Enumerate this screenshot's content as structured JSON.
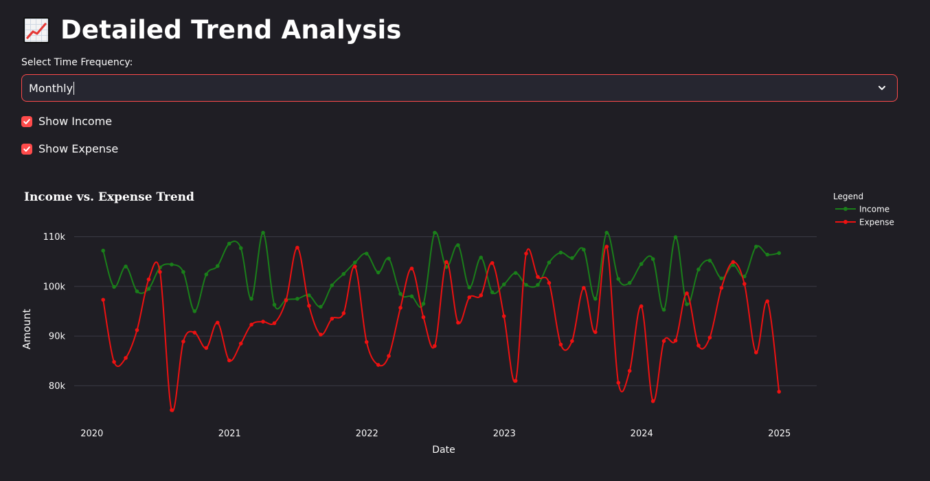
{
  "page": {
    "title": "Detailed Trend Analysis",
    "title_icon": "chart-increasing-icon"
  },
  "frequency": {
    "label": "Select Time Frequency:",
    "selected": "Monthly"
  },
  "toggles": {
    "income": {
      "label": "Show Income",
      "checked": true
    },
    "expense": {
      "label": "Show Expense",
      "checked": true
    }
  },
  "colors": {
    "accent": "#ff4b4b",
    "income": "#1a7f1a",
    "expense": "#ee1111",
    "background": "#1f1e24"
  },
  "chart_data": {
    "type": "line",
    "title": "Income vs. Expense Trend",
    "xlabel": "Date",
    "ylabel": "Amount",
    "x_ticks": [
      "2020",
      "2021",
      "2022",
      "2023",
      "2024",
      "2025"
    ],
    "y_ticks": [
      "80k",
      "90k",
      "100k",
      "110k"
    ],
    "ylim": [
      73000,
      112000
    ],
    "xlim": [
      "2019-11-15",
      "2025-04-10"
    ],
    "legend_title": "Legend",
    "legend_position": "top-right",
    "grid": true,
    "x": [
      "2020-01-31",
      "2020-02-29",
      "2020-03-31",
      "2020-04-30",
      "2020-05-31",
      "2020-06-30",
      "2020-07-31",
      "2020-08-31",
      "2020-09-30",
      "2020-10-31",
      "2020-11-30",
      "2020-12-31",
      "2021-01-31",
      "2021-02-28",
      "2021-03-31",
      "2021-04-30",
      "2021-05-31",
      "2021-06-30",
      "2021-07-31",
      "2021-08-31",
      "2021-09-30",
      "2021-10-31",
      "2021-11-30",
      "2021-12-31",
      "2022-01-31",
      "2022-02-28",
      "2022-03-31",
      "2022-04-30",
      "2022-05-31",
      "2022-06-30",
      "2022-07-31",
      "2022-08-31",
      "2022-09-30",
      "2022-10-31",
      "2022-11-30",
      "2022-12-31",
      "2023-01-31",
      "2023-02-28",
      "2023-03-31",
      "2023-04-30",
      "2023-05-31",
      "2023-06-30",
      "2023-07-31",
      "2023-08-31",
      "2023-09-30",
      "2023-10-31",
      "2023-11-30",
      "2023-12-31",
      "2024-01-31",
      "2024-02-29",
      "2024-03-31",
      "2024-04-30",
      "2024-05-31",
      "2024-06-30",
      "2024-07-31",
      "2024-08-31",
      "2024-09-30",
      "2024-10-31",
      "2024-11-30",
      "2024-12-31"
    ],
    "series": [
      {
        "name": "Income",
        "color": "#1a7f1a",
        "values": [
          107200,
          99900,
          104000,
          99000,
          99500,
          103800,
          104400,
          102900,
          95000,
          102400,
          104100,
          108600,
          107700,
          97500,
          110800,
          96300,
          97300,
          97500,
          98200,
          95900,
          100200,
          102500,
          104800,
          106600,
          102800,
          105600,
          98500,
          98000,
          96500,
          110800,
          103900,
          108300,
          99800,
          105800,
          98800,
          100400,
          102700,
          100300,
          100300,
          104800,
          106800,
          105700,
          107400,
          97500,
          110800,
          101500,
          100700,
          104500,
          105500,
          95300,
          109900,
          96400,
          103400,
          105200,
          101600,
          104300,
          102000,
          108000,
          106400,
          106700
        ]
      },
      {
        "name": "Expense",
        "color": "#ee1111",
        "values": [
          97300,
          84800,
          85600,
          91200,
          101400,
          102900,
          75100,
          88900,
          90700,
          87600,
          92700,
          85100,
          88500,
          92300,
          92900,
          92600,
          97200,
          107800,
          96100,
          90300,
          93500,
          94600,
          104000,
          88800,
          84200,
          86000,
          95700,
          103600,
          93800,
          88000,
          104900,
          92700,
          97800,
          98200,
          104700,
          94000,
          81000,
          106600,
          101900,
          100700,
          88300,
          89000,
          99700,
          90800,
          108000,
          80600,
          83000,
          96000,
          76900,
          89000,
          89100,
          98600,
          88100,
          89700,
          99700,
          104900,
          100500,
          86700,
          97000,
          78800
        ]
      }
    ]
  }
}
